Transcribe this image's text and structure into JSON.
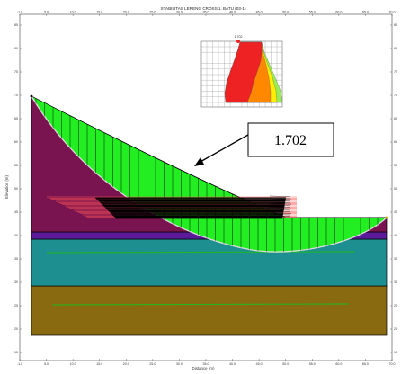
{
  "title": "STABILITAS LERENG CROSS 1. BATU (03-1)",
  "xlabel": "Distance (m)",
  "ylabel": "Elevation (m)",
  "factor_of_safety": "1.702",
  "grid_center_label": "1.702",
  "x_ticks": [
    "-1.0",
    "5.0",
    "10.0",
    "15.0",
    "20.0",
    "25.0",
    "30.0",
    "35.0",
    "40.0",
    "45.0",
    "50.0",
    "55.0",
    "60.0",
    "65.0",
    "70.0"
  ],
  "y_ticks": [
    "85",
    "80",
    "75",
    "70",
    "65",
    "60",
    "55",
    "50",
    "45",
    "40",
    "35",
    "30",
    "25",
    "20",
    "15"
  ],
  "colors": {
    "slip_mass": "#22ee22",
    "embankment": "#7a1450",
    "layer_purple": "#5a1a9a",
    "layer_teal": "#1e8f90",
    "layer_brown": "#8a6a10",
    "reinforcement_red": "#ff5555",
    "reinforcement_black": "#000000",
    "grid_red": "#ee2222",
    "grid_orange": "#ff8800",
    "grid_yellow": "#ffee00",
    "grid_light_green": "#99ee55"
  }
}
